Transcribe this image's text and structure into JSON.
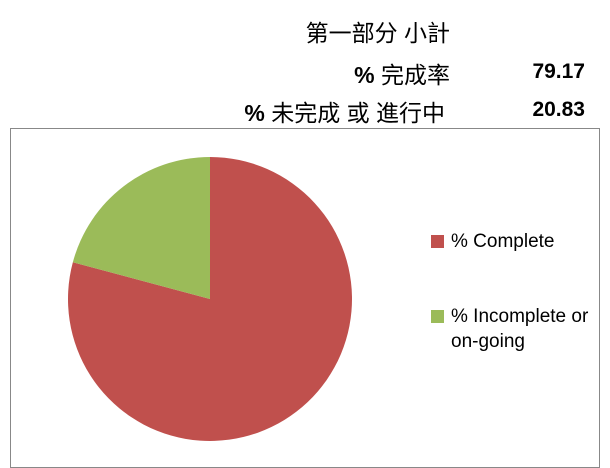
{
  "header": {
    "title": "第一部分 小計",
    "rows": [
      {
        "prefix": "%",
        "label": "完成率"
      },
      {
        "prefix": "%",
        "label": "未完成 或 進行中"
      }
    ]
  },
  "chart_data": {
    "type": "pie",
    "categories": [
      "% Complete",
      "% Incomplete or on-going"
    ],
    "values": [
      79.17,
      20.83
    ],
    "colors": [
      "#c0504d",
      "#9bbb59"
    ],
    "legend": "right"
  }
}
